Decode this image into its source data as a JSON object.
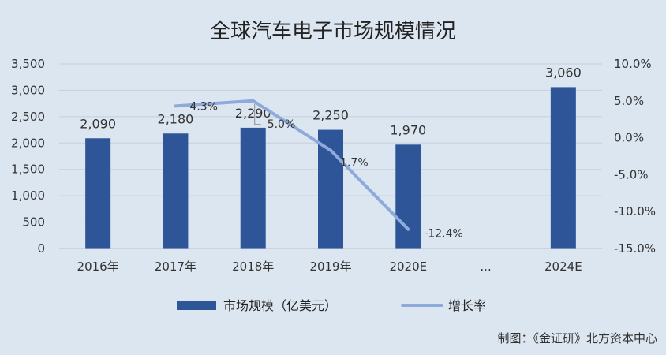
{
  "chart_data": {
    "type": "bar",
    "title": "全球汽车电子市场规模情况",
    "categories": [
      "2016年",
      "2017年",
      "2018年",
      "2019年",
      "2020E",
      "...",
      "2024E"
    ],
    "series": [
      {
        "name": "市场规模（亿美元）",
        "type": "bar",
        "axis": "left",
        "values": [
          2090,
          2180,
          2290,
          2250,
          1970,
          null,
          3060
        ],
        "labels": [
          "2,090",
          "2,180",
          "2,290",
          "2,250",
          "1,970",
          "",
          "3,060"
        ],
        "color": "#2e5597"
      },
      {
        "name": "增长率",
        "type": "line",
        "axis": "right",
        "values": [
          null,
          4.3,
          5.0,
          -1.7,
          -12.4,
          null,
          null
        ],
        "labels": [
          "",
          "4.3%",
          "5.0%",
          "-1.7%",
          "-12.4%",
          "",
          ""
        ],
        "color": "#8eaadb"
      }
    ],
    "y_left": {
      "min": 0,
      "max": 3500,
      "ticks": [
        "0",
        "500",
        "1,000",
        "1,500",
        "2,000",
        "2,500",
        "3,000",
        "3,500"
      ]
    },
    "y_right": {
      "min": -15,
      "max": 10,
      "ticks": [
        "-15.0%",
        "-10.0%",
        "-5.0%",
        "0.0%",
        "5.0%",
        "10.0%"
      ]
    },
    "grid": true,
    "legend": "bottom"
  },
  "source": "制图：《金证研》北方资本中心"
}
